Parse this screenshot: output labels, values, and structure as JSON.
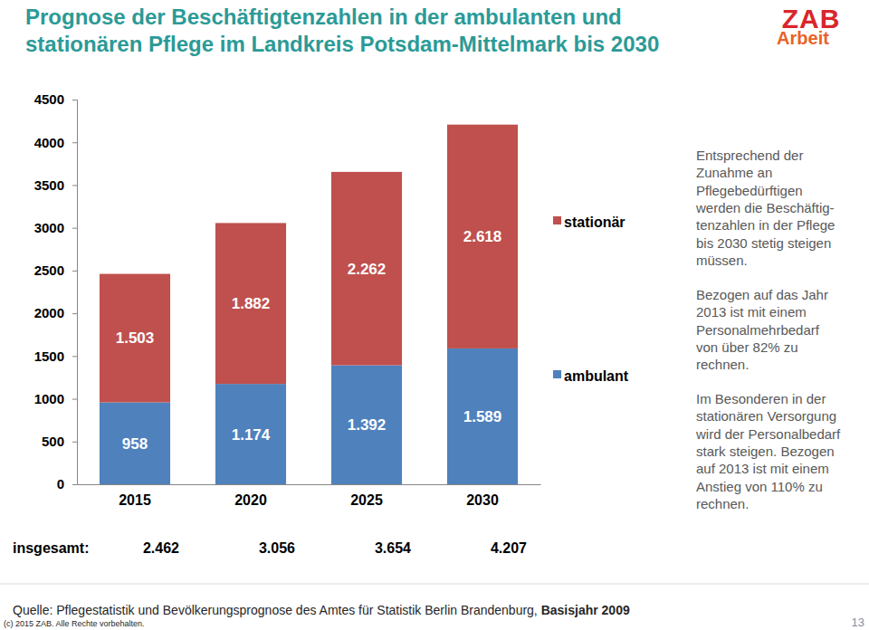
{
  "chart_data": {
    "type": "bar",
    "title": "Prognose der Beschäftigtenzahlen in der ambulanten und stationären Pflege im Landkreis Potsdam-Mittelmark bis 2030",
    "categories": [
      "2015",
      "2020",
      "2025",
      "2030"
    ],
    "series": [
      {
        "name": "ambulant",
        "color": "#4f81bd",
        "values": [
          958,
          1174,
          1392,
          1589
        ],
        "value_labels": [
          "958",
          "1.174",
          "1.392",
          "1.589"
        ]
      },
      {
        "name": "stationär",
        "color": "#c0504d",
        "values": [
          1503,
          1882,
          2262,
          2618
        ],
        "value_labels": [
          "1.503",
          "1.882",
          "2.262",
          "2.618"
        ]
      }
    ],
    "stacked": true,
    "data_labels": true,
    "legend": "right",
    "grid": false,
    "ylim": [
      0,
      4500
    ],
    "yticks": [
      0,
      500,
      1000,
      1500,
      2000,
      2500,
      3000,
      3500,
      4000,
      4500
    ]
  },
  "totals": {
    "label": "insgesamt:",
    "values": [
      2462,
      3056,
      3654,
      4207
    ],
    "value_labels": [
      "2.462",
      "3.056",
      "3.654",
      "4.207"
    ]
  },
  "header": {
    "logo": [
      "ZAB",
      "Arbeit"
    ]
  },
  "annotations": [
    [
      "Entsprechend der",
      "Zunahme an",
      "Pflegebedürftigen",
      "werden die Beschäftig-",
      "tenzahlen in der Pflege",
      "bis 2030 stetig steigen",
      "müssen."
    ],
    [
      "Bezogen auf das Jahr",
      "2013 ist mit einem",
      "Personalmehrbedarf",
      "von über 82% zu",
      "rechnen."
    ],
    [
      "Im Besonderen in der",
      "stationären Versorgung",
      "wird der Personalbedarf",
      "stark steigen. Bezogen",
      "auf 2013 ist mit einem",
      "Anstieg von 110% zu",
      "rechnen."
    ]
  ],
  "footer": {
    "source": [
      "Quelle: Pflegestatistik und Bevölkerungsprognose des Amtes für Statistik Berlin Brandenburg, ",
      "Basisjahr 2009"
    ],
    "copyright": "(c) 2015 ZAB. Alle Rechte vorbehalten.",
    "page": "13"
  }
}
